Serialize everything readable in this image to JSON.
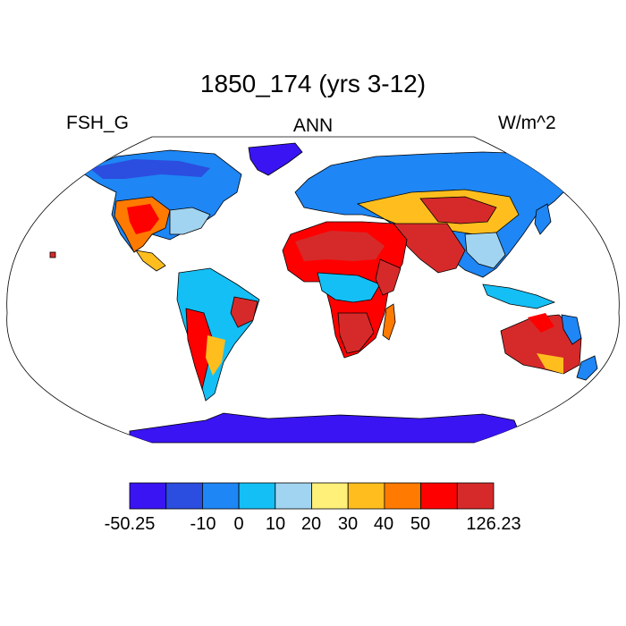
{
  "title": "1850_174 (yrs 3-12)",
  "left_label": "FSH_G",
  "center_label": "ANN",
  "right_label": "W/m^2",
  "colorbar": {
    "colors": [
      "#3a14f2",
      "#2b4de0",
      "#1e86f5",
      "#14bff5",
      "#a1d4f0",
      "#fff07a",
      "#ffbe1e",
      "#ff7a00",
      "#ff0000",
      "#d62a2a"
    ],
    "tick_labels": [
      "-50.25",
      "-10",
      "0",
      "10",
      "20",
      "30",
      "40",
      "50",
      "126.23"
    ]
  },
  "colors": {
    "ocean": "#ffffff",
    "outline": "#000000"
  }
}
